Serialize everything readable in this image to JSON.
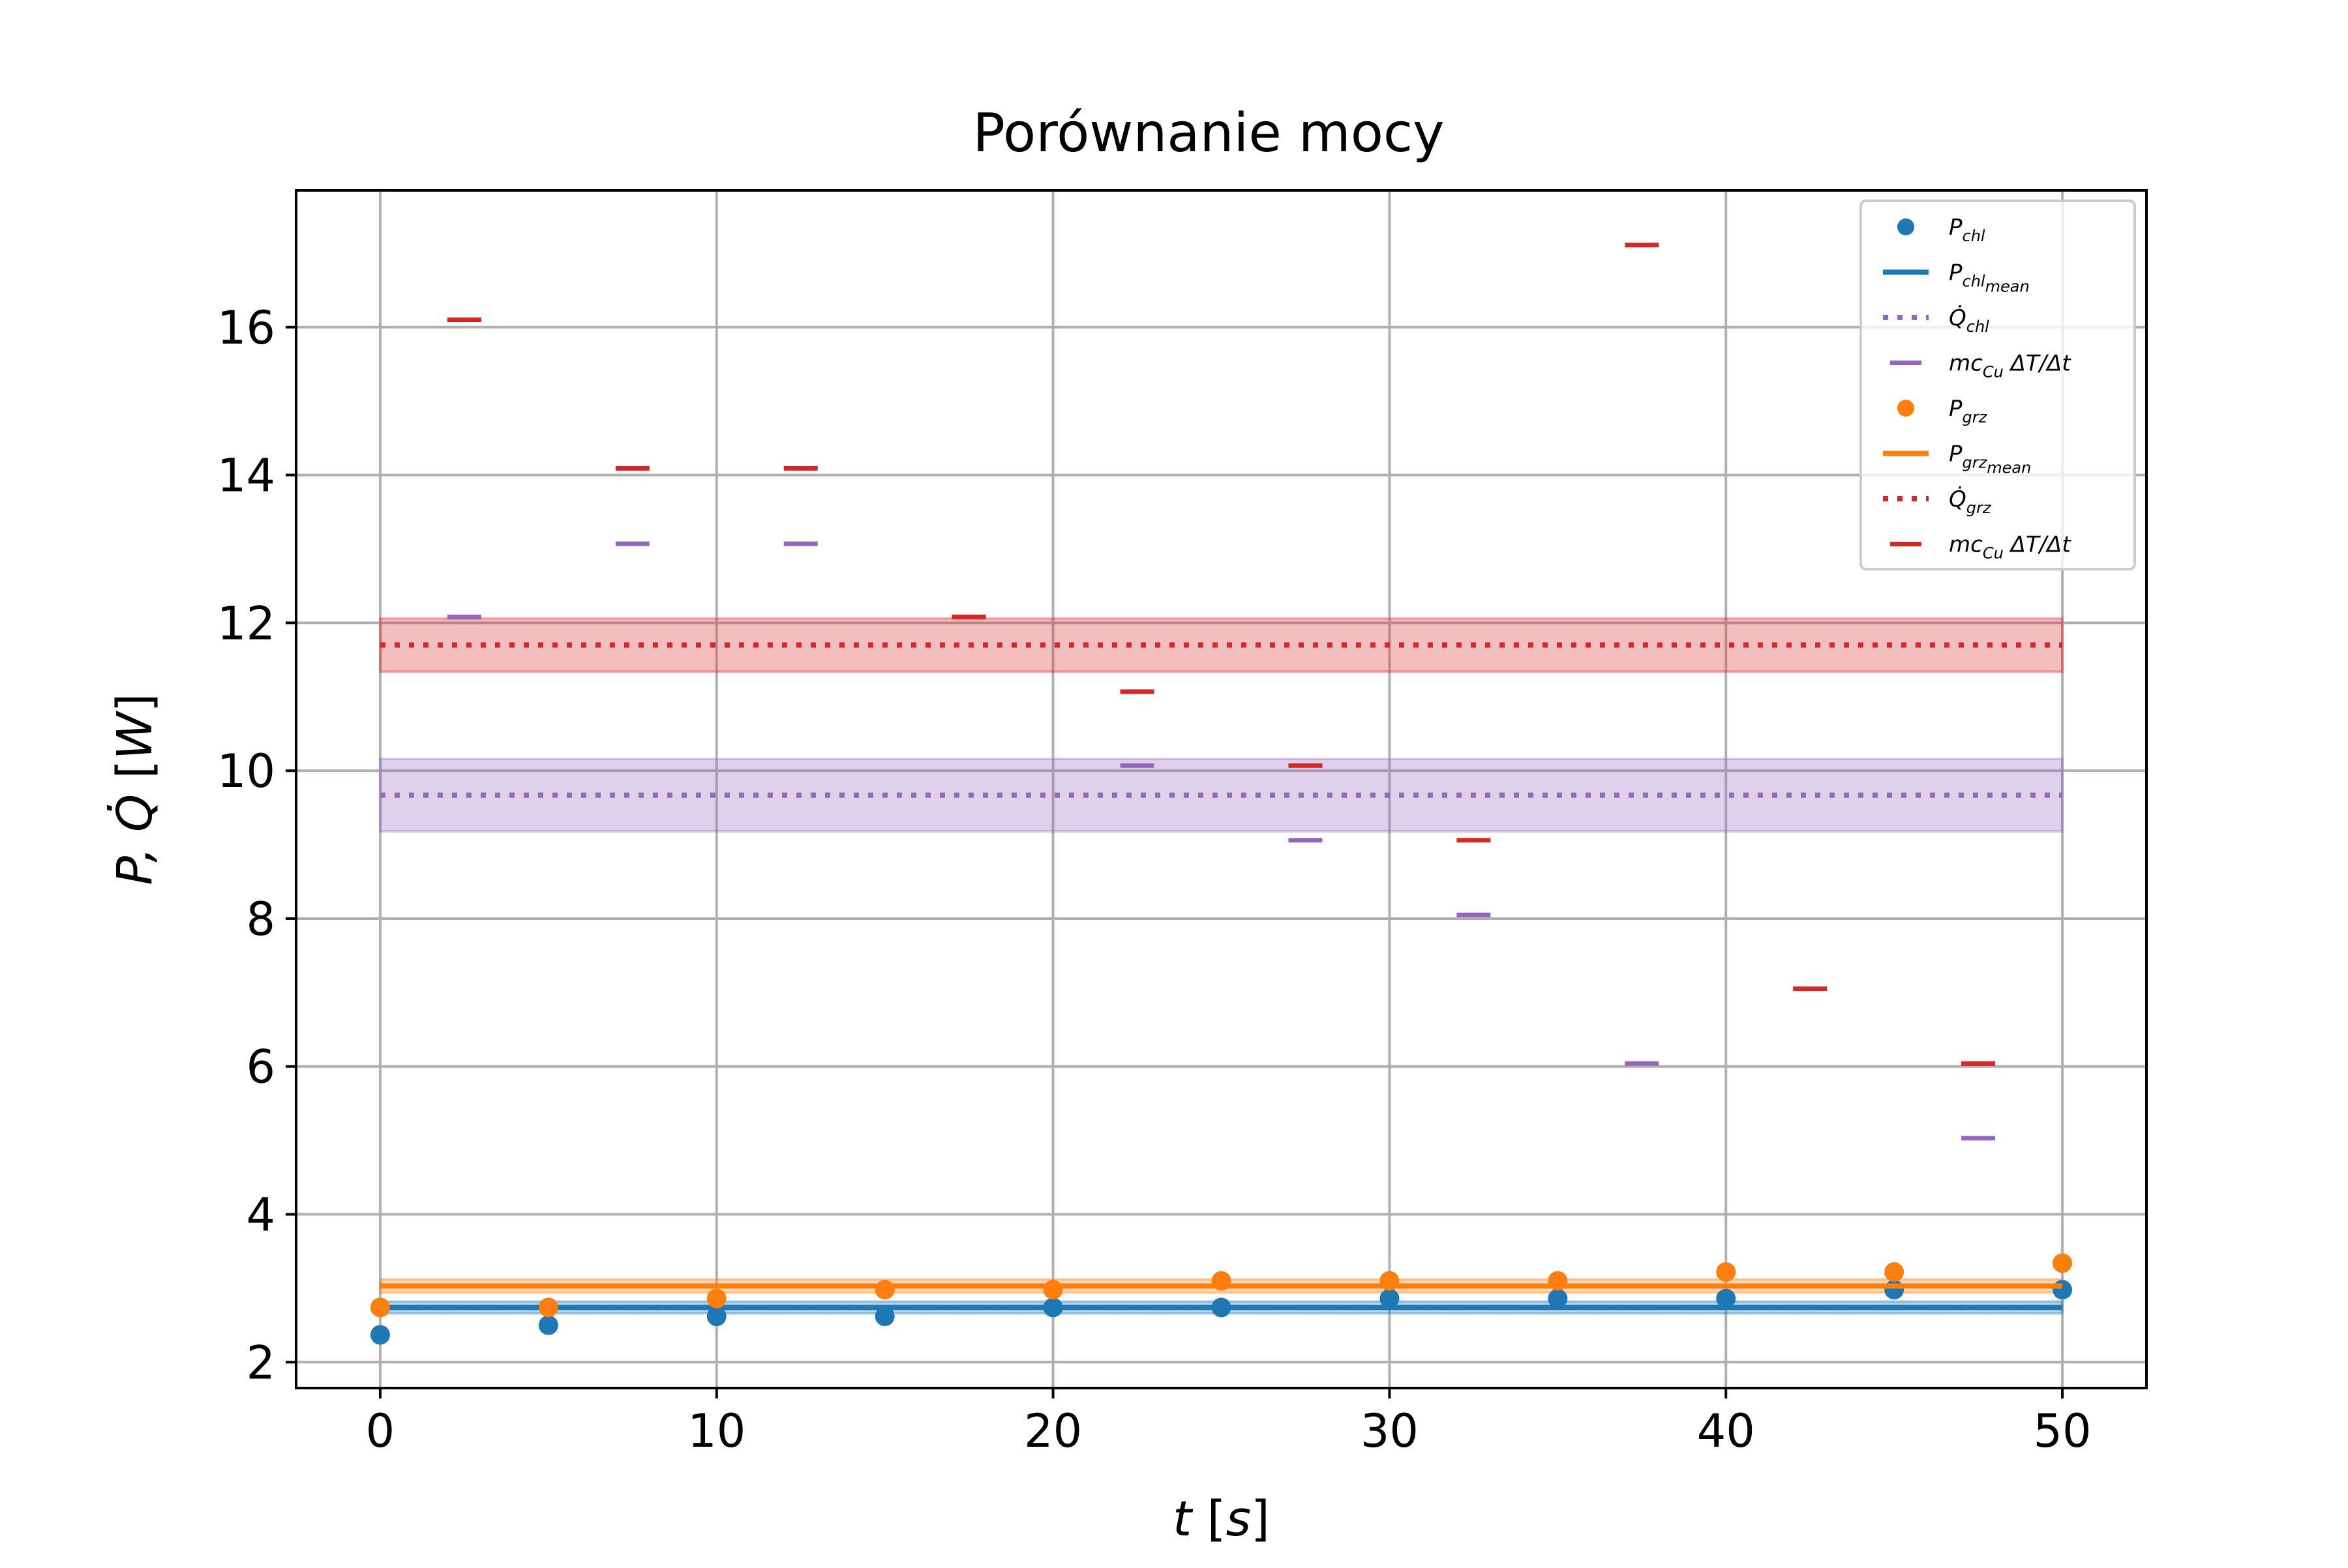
{
  "chart_data": {
    "type": "scatter",
    "title": "Porównanie mocy",
    "xlabel": {
      "var": "t",
      "unit": "s"
    },
    "ylabel": {
      "var": "P, Q̇",
      "unit": "W"
    },
    "xlim": [
      -2.5,
      52.5
    ],
    "ylim": [
      1.65,
      17.85
    ],
    "xticks": [
      0,
      10,
      20,
      30,
      40,
      50
    ],
    "xtick_labels": [
      "0",
      "10",
      "20",
      "30",
      "40",
      "50"
    ],
    "yticks": [
      2,
      4,
      6,
      8,
      10,
      12,
      14,
      16
    ],
    "ytick_labels": [
      "2",
      "4",
      "6",
      "8",
      "10",
      "12",
      "14",
      "16"
    ],
    "grid": true,
    "legend_position": "top-right",
    "series": [
      {
        "name": "P_chl",
        "legend": {
          "base": "P",
          "sub": "chl"
        },
        "kind": "points",
        "color": "#1f77b4",
        "x": [
          0,
          5,
          10,
          15,
          20,
          25,
          30,
          35,
          40,
          45,
          50
        ],
        "y": [
          2.37,
          2.5,
          2.62,
          2.62,
          2.74,
          2.74,
          2.86,
          2.86,
          2.86,
          2.98,
          2.98
        ]
      },
      {
        "name": "P_chl_mean",
        "legend": {
          "base": "P",
          "sub": "chl",
          "subsub": "mean"
        },
        "kind": "mean-line",
        "color": "#1f77b4",
        "x_range": [
          0,
          50
        ],
        "mean": 2.74,
        "band": [
          2.66,
          2.82
        ]
      },
      {
        "name": "Q̇_chl",
        "legend": {
          "base": "Q̇",
          "sub": "chl"
        },
        "kind": "dotted-mean",
        "color": "#9467bd",
        "x_range": [
          0,
          50
        ],
        "mean": 9.67,
        "band": [
          9.18,
          10.16
        ]
      },
      {
        "name": "mc_Cu ΔT/Δt (chl)",
        "legend": {
          "base": "mc",
          "sub": "Cu",
          "tail": "ΔT/Δt"
        },
        "kind": "hline-marks",
        "color": "#9467bd",
        "x": [
          2.5,
          7.5,
          12.5,
          17.5,
          22.5,
          27.5,
          32.5,
          37.5,
          47.5
        ],
        "y": [
          12.08,
          13.07,
          13.07,
          12.08,
          10.07,
          9.06,
          8.05,
          6.04,
          5.03
        ]
      },
      {
        "name": "P_grz",
        "legend": {
          "base": "P",
          "sub": "grz"
        },
        "kind": "points",
        "color": "#ff7f0e",
        "x": [
          0,
          5,
          10,
          15,
          20,
          25,
          30,
          35,
          40,
          45,
          50
        ],
        "y": [
          2.74,
          2.74,
          2.86,
          2.98,
          2.98,
          3.1,
          3.1,
          3.1,
          3.22,
          3.22,
          3.34
        ]
      },
      {
        "name": "P_grz_mean",
        "legend": {
          "base": "P",
          "sub": "grz",
          "subsub": "mean"
        },
        "kind": "mean-line",
        "color": "#ff7f0e",
        "x_range": [
          0,
          50
        ],
        "mean": 3.03,
        "band": [
          2.94,
          3.12
        ]
      },
      {
        "name": "Q̇_grz",
        "legend": {
          "base": "Q̇",
          "sub": "grz"
        },
        "kind": "dotted-mean",
        "color": "#d62728",
        "x_range": [
          0,
          50
        ],
        "mean": 11.7,
        "band": [
          11.34,
          12.06
        ]
      },
      {
        "name": "mc_Cu ΔT/Δt (grz)",
        "legend": {
          "base": "mc",
          "sub": "Cu",
          "tail": "ΔT/Δt"
        },
        "kind": "hline-marks",
        "color": "#d62728",
        "x": [
          2.5,
          7.5,
          12.5,
          17.5,
          22.5,
          27.5,
          32.5,
          37.5,
          42.5,
          47.5
        ],
        "y": [
          16.1,
          14.09,
          14.09,
          12.08,
          11.07,
          10.07,
          9.06,
          17.11,
          7.05,
          6.04
        ]
      }
    ]
  }
}
